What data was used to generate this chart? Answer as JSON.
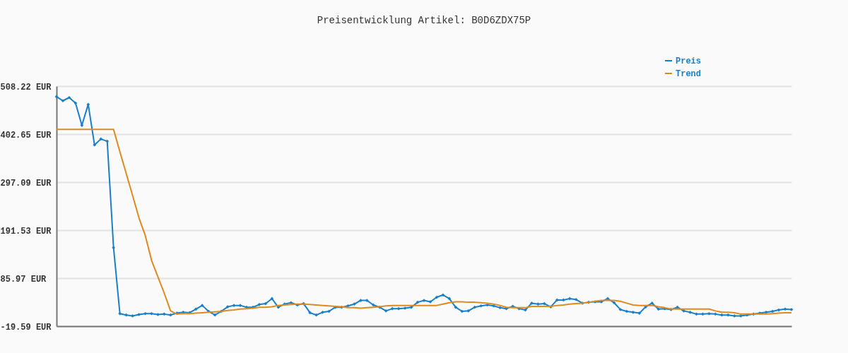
{
  "chart_data": {
    "type": "line",
    "title": "Preisentwicklung Artikel: B0D6ZDX75P",
    "categories": [
      null,
      null,
      null,
      null,
      null,
      null,
      null,
      null,
      null,
      null,
      null,
      null,
      null,
      null,
      null,
      null,
      null,
      null,
      null,
      null,
      null,
      null,
      null,
      null,
      null,
      null,
      null,
      null,
      null,
      null,
      null,
      null,
      null,
      null,
      null,
      null,
      null,
      null,
      null,
      null,
      null,
      null,
      null,
      null,
      null,
      null,
      null,
      null,
      null,
      null,
      null,
      null,
      null,
      null,
      null,
      null,
      null,
      null,
      null,
      null,
      null,
      null,
      null,
      null,
      null,
      null,
      null,
      null,
      null,
      null,
      null,
      null,
      null,
      null,
      null,
      null,
      null,
      null,
      null,
      null,
      null,
      null,
      null,
      null,
      null,
      null,
      null,
      null,
      null,
      null,
      null,
      null,
      null,
      null,
      null,
      null,
      null,
      null,
      null,
      null,
      null,
      null,
      null,
      null,
      null,
      null,
      null,
      null,
      null,
      null,
      null,
      null,
      null,
      null,
      null,
      null,
      null
    ],
    "series": [
      {
        "name": "Preis",
        "color": "#1a7fc9",
        "marker": "diamond",
        "values": [
          485,
          476,
          483,
          471,
          422,
          468,
          379,
          392,
          387,
          153,
          8,
          5,
          3,
          6,
          8,
          8,
          6,
          7,
          5,
          9,
          11,
          10,
          18,
          26,
          13,
          5,
          13,
          23,
          26,
          26,
          22,
          22,
          28,
          30,
          41,
          22,
          29,
          32,
          27,
          30,
          10,
          5,
          11,
          13,
          22,
          22,
          25,
          29,
          37,
          37,
          27,
          22,
          14,
          19,
          19,
          20,
          22,
          33,
          37,
          34,
          44,
          49,
          41,
          22,
          13,
          14,
          22,
          25,
          27,
          25,
          21,
          19,
          24,
          19,
          16,
          31,
          29,
          30,
          23,
          38,
          38,
          41,
          39,
          31,
          33,
          34,
          34,
          41,
          32,
          17,
          13,
          11,
          9,
          23,
          31,
          18,
          19,
          17,
          22,
          14,
          11,
          7,
          7,
          8,
          7,
          5,
          5,
          3,
          3,
          5,
          7,
          9,
          11,
          13,
          16,
          18,
          17
        ]
      },
      {
        "name": "Trend",
        "color": "#e08a1e",
        "marker": "none",
        "values": [
          413,
          413,
          413,
          413,
          413,
          413,
          413,
          413,
          413,
          413,
          364,
          316,
          268,
          219,
          180,
          125,
          89,
          53,
          14,
          7,
          8,
          8,
          9,
          10,
          11,
          12,
          13,
          15,
          16,
          18,
          19,
          20,
          22,
          22,
          23,
          26,
          27,
          28,
          29,
          29,
          28,
          27,
          26,
          25,
          24,
          23,
          21,
          21,
          20,
          21,
          22,
          23,
          25,
          26,
          26,
          26,
          26,
          26,
          26,
          26,
          26,
          29,
          32,
          34,
          34,
          33,
          33,
          32,
          31,
          29,
          26,
          22,
          21,
          21,
          21,
          24,
          24,
          24,
          24,
          26,
          27,
          29,
          30,
          31,
          33,
          35,
          37,
          37,
          37,
          35,
          31,
          27,
          26,
          26,
          26,
          23,
          21,
          18,
          18,
          18,
          18,
          18,
          18,
          18,
          14,
          11,
          11,
          10,
          7,
          7,
          7,
          7,
          7,
          8,
          9,
          10,
          10
        ]
      }
    ],
    "ylim": [
      -19.59,
      508.22
    ],
    "yticks": [
      {
        "value": -19.59,
        "label": "-19.59 EUR"
      },
      {
        "value": 85.97,
        "label": "85.97 EUR"
      },
      {
        "value": 191.53,
        "label": "191.53 EUR"
      },
      {
        "value": 297.09,
        "label": "297.09 EUR"
      },
      {
        "value": 402.65,
        "label": "402.65 EUR"
      },
      {
        "value": 508.22,
        "label": "508.22 EUR"
      }
    ],
    "grid": "y",
    "legend": "top right"
  }
}
